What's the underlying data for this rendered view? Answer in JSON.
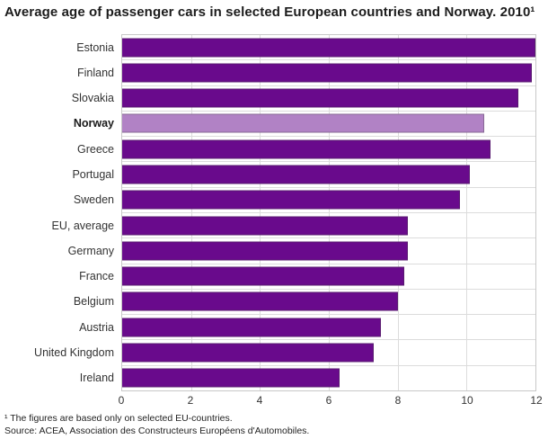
{
  "title": "Average age of passenger cars in selected European countries and Norway. 2010¹",
  "footnotes": [
    "¹ The figures are based only on selected EU-countries.",
    "Source: ACEA, Association des Constructeurs Européens d'Automobiles."
  ],
  "chart_data": {
    "type": "bar",
    "orientation": "horizontal",
    "title": "Average age of passenger cars in selected European countries and Norway. 2010¹",
    "categories": [
      "Estonia",
      "Finland",
      "Slovakia",
      "Norway",
      "Greece",
      "Portugal",
      "Sweden",
      "EU, average",
      "Germany",
      "France",
      "Belgium",
      "Austria",
      "United Kingdom",
      "Ireland"
    ],
    "values": [
      12.0,
      11.9,
      11.5,
      10.5,
      10.7,
      10.1,
      9.8,
      8.3,
      8.3,
      8.2,
      8.0,
      7.5,
      7.3,
      6.3
    ],
    "highlighted_category": "Norway",
    "xlabel": "",
    "ylabel": "",
    "xlim": [
      0,
      12
    ],
    "xticks": [
      0,
      2,
      4,
      6,
      8,
      10,
      12
    ],
    "grid": true,
    "legend": "none",
    "colors": {
      "bar": "#690a8c",
      "highlight": "#b182c5",
      "gridline": "#dcdcdc",
      "plot_border": "#c8c8c8",
      "text": "#333333"
    }
  }
}
